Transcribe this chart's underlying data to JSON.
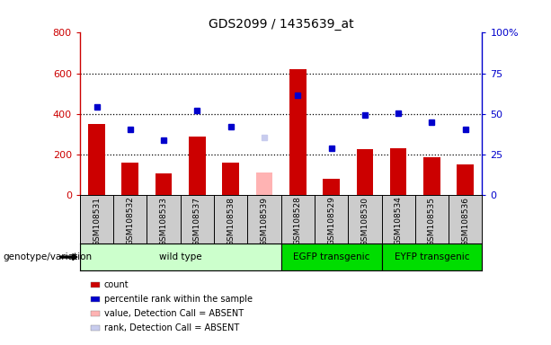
{
  "title": "GDS2099 / 1435639_at",
  "samples": [
    "GSM108531",
    "GSM108532",
    "GSM108533",
    "GSM108537",
    "GSM108538",
    "GSM108539",
    "GSM108528",
    "GSM108529",
    "GSM108530",
    "GSM108534",
    "GSM108535",
    "GSM108536"
  ],
  "bar_values": [
    350,
    160,
    105,
    290,
    160,
    null,
    620,
    80,
    225,
    230,
    185,
    150
  ],
  "bar_absent_values": [
    null,
    null,
    null,
    null,
    null,
    110,
    null,
    null,
    null,
    null,
    null,
    null
  ],
  "dot_values": [
    435,
    325,
    270,
    415,
    335,
    null,
    490,
    230,
    395,
    405,
    360,
    325
  ],
  "dot_absent_values": [
    null,
    null,
    null,
    null,
    null,
    285,
    null,
    null,
    null,
    null,
    null,
    null
  ],
  "ylim_left": [
    0,
    800
  ],
  "ylim_right": [
    0,
    100
  ],
  "left_yticks": [
    0,
    200,
    400,
    600,
    800
  ],
  "right_yticks": [
    0,
    25,
    50,
    75,
    100
  ],
  "right_yticklabels": [
    "0",
    "25",
    "50",
    "75",
    "100%"
  ],
  "bar_color": "#cc0000",
  "bar_absent_color": "#ffb3b3",
  "dot_color": "#0000cc",
  "dot_absent_color": "#c8ccee",
  "groups": [
    {
      "label": "wild type",
      "start": 0,
      "end": 6,
      "color": "#ccffcc"
    },
    {
      "label": "EGFP transgenic",
      "start": 6,
      "end": 9,
      "color": "#00dd00"
    },
    {
      "label": "EYFP transgenic",
      "start": 9,
      "end": 12,
      "color": "#00dd00"
    }
  ],
  "genotype_label": "genotype/variation",
  "legend_items": [
    {
      "label": "count",
      "color": "#cc0000"
    },
    {
      "label": "percentile rank within the sample",
      "color": "#0000cc"
    },
    {
      "label": "value, Detection Call = ABSENT",
      "color": "#ffb3b3"
    },
    {
      "label": "rank, Detection Call = ABSENT",
      "color": "#c8ccee"
    }
  ],
  "bg_color": "#cccccc",
  "plot_bg": "#ffffff",
  "left_tick_color": "#cc0000",
  "right_tick_color": "#0000cc",
  "grid_yticks": [
    200,
    400,
    600
  ]
}
